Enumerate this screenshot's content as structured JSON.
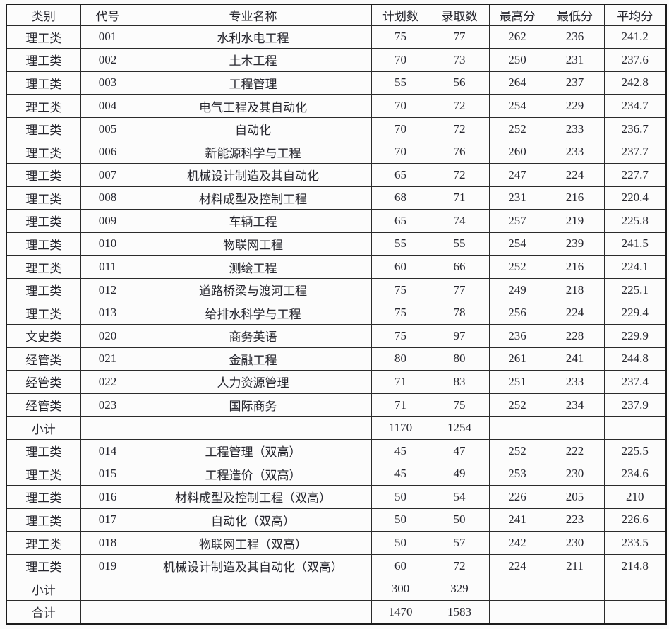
{
  "page": {
    "background_color": "#fbfbfb",
    "text_color": "#26262e",
    "border_color": "#2b2b2b"
  },
  "table": {
    "columns": [
      "类别",
      "代号",
      "专业名称",
      "计划数",
      "录取数",
      "最高分",
      "最低分",
      "平均分"
    ],
    "rows": [
      [
        "理工类",
        "001",
        "水利水电工程",
        "75",
        "77",
        "262",
        "236",
        "241.2"
      ],
      [
        "理工类",
        "002",
        "土木工程",
        "70",
        "73",
        "250",
        "231",
        "237.6"
      ],
      [
        "理工类",
        "003",
        "工程管理",
        "55",
        "56",
        "264",
        "237",
        "242.8"
      ],
      [
        "理工类",
        "004",
        "电气工程及其自动化",
        "70",
        "72",
        "254",
        "229",
        "234.7"
      ],
      [
        "理工类",
        "005",
        "自动化",
        "70",
        "72",
        "252",
        "233",
        "236.7"
      ],
      [
        "理工类",
        "006",
        "新能源科学与工程",
        "70",
        "76",
        "260",
        "233",
        "237.7"
      ],
      [
        "理工类",
        "007",
        "机械设计制造及其自动化",
        "65",
        "72",
        "247",
        "224",
        "227.7"
      ],
      [
        "理工类",
        "008",
        "材料成型及控制工程",
        "68",
        "71",
        "231",
        "216",
        "220.4"
      ],
      [
        "理工类",
        "009",
        "车辆工程",
        "65",
        "74",
        "257",
        "219",
        "225.8"
      ],
      [
        "理工类",
        "010",
        "物联网工程",
        "55",
        "55",
        "254",
        "239",
        "241.5"
      ],
      [
        "理工类",
        "011",
        "测绘工程",
        "60",
        "66",
        "252",
        "216",
        "224.1"
      ],
      [
        "理工类",
        "012",
        "道路桥梁与渡河工程",
        "75",
        "77",
        "249",
        "218",
        "225.1"
      ],
      [
        "理工类",
        "013",
        "给排水科学与工程",
        "75",
        "78",
        "256",
        "224",
        "229.4"
      ],
      [
        "文史类",
        "020",
        "商务英语",
        "75",
        "97",
        "236",
        "228",
        "229.9"
      ],
      [
        "经管类",
        "021",
        "金融工程",
        "80",
        "80",
        "261",
        "241",
        "244.8"
      ],
      [
        "经管类",
        "022",
        "人力资源管理",
        "71",
        "83",
        "251",
        "233",
        "237.4"
      ],
      [
        "经管类",
        "023",
        "国际商务",
        "71",
        "75",
        "252",
        "234",
        "237.9"
      ],
      [
        "小计",
        "",
        "",
        "1170",
        "1254",
        "",
        "",
        ""
      ],
      [
        "理工类",
        "014",
        "工程管理（双高）",
        "45",
        "47",
        "252",
        "222",
        "225.5"
      ],
      [
        "理工类",
        "015",
        "工程造价（双高）",
        "45",
        "49",
        "253",
        "230",
        "234.6"
      ],
      [
        "理工类",
        "016",
        "材料成型及控制工程（双高）",
        "50",
        "54",
        "226",
        "205",
        "210"
      ],
      [
        "理工类",
        "017",
        "自动化（双高）",
        "50",
        "50",
        "241",
        "223",
        "226.6"
      ],
      [
        "理工类",
        "018",
        "物联网工程（双高）",
        "50",
        "57",
        "242",
        "230",
        "233.5"
      ],
      [
        "理工类",
        "019",
        "机械设计制造及其自动化（双高）",
        "60",
        "72",
        "224",
        "211",
        "214.8"
      ],
      [
        "小计",
        "",
        "",
        "300",
        "329",
        "",
        "",
        ""
      ],
      [
        "合计",
        "",
        "",
        "1470",
        "1583",
        "",
        "",
        ""
      ]
    ]
  }
}
